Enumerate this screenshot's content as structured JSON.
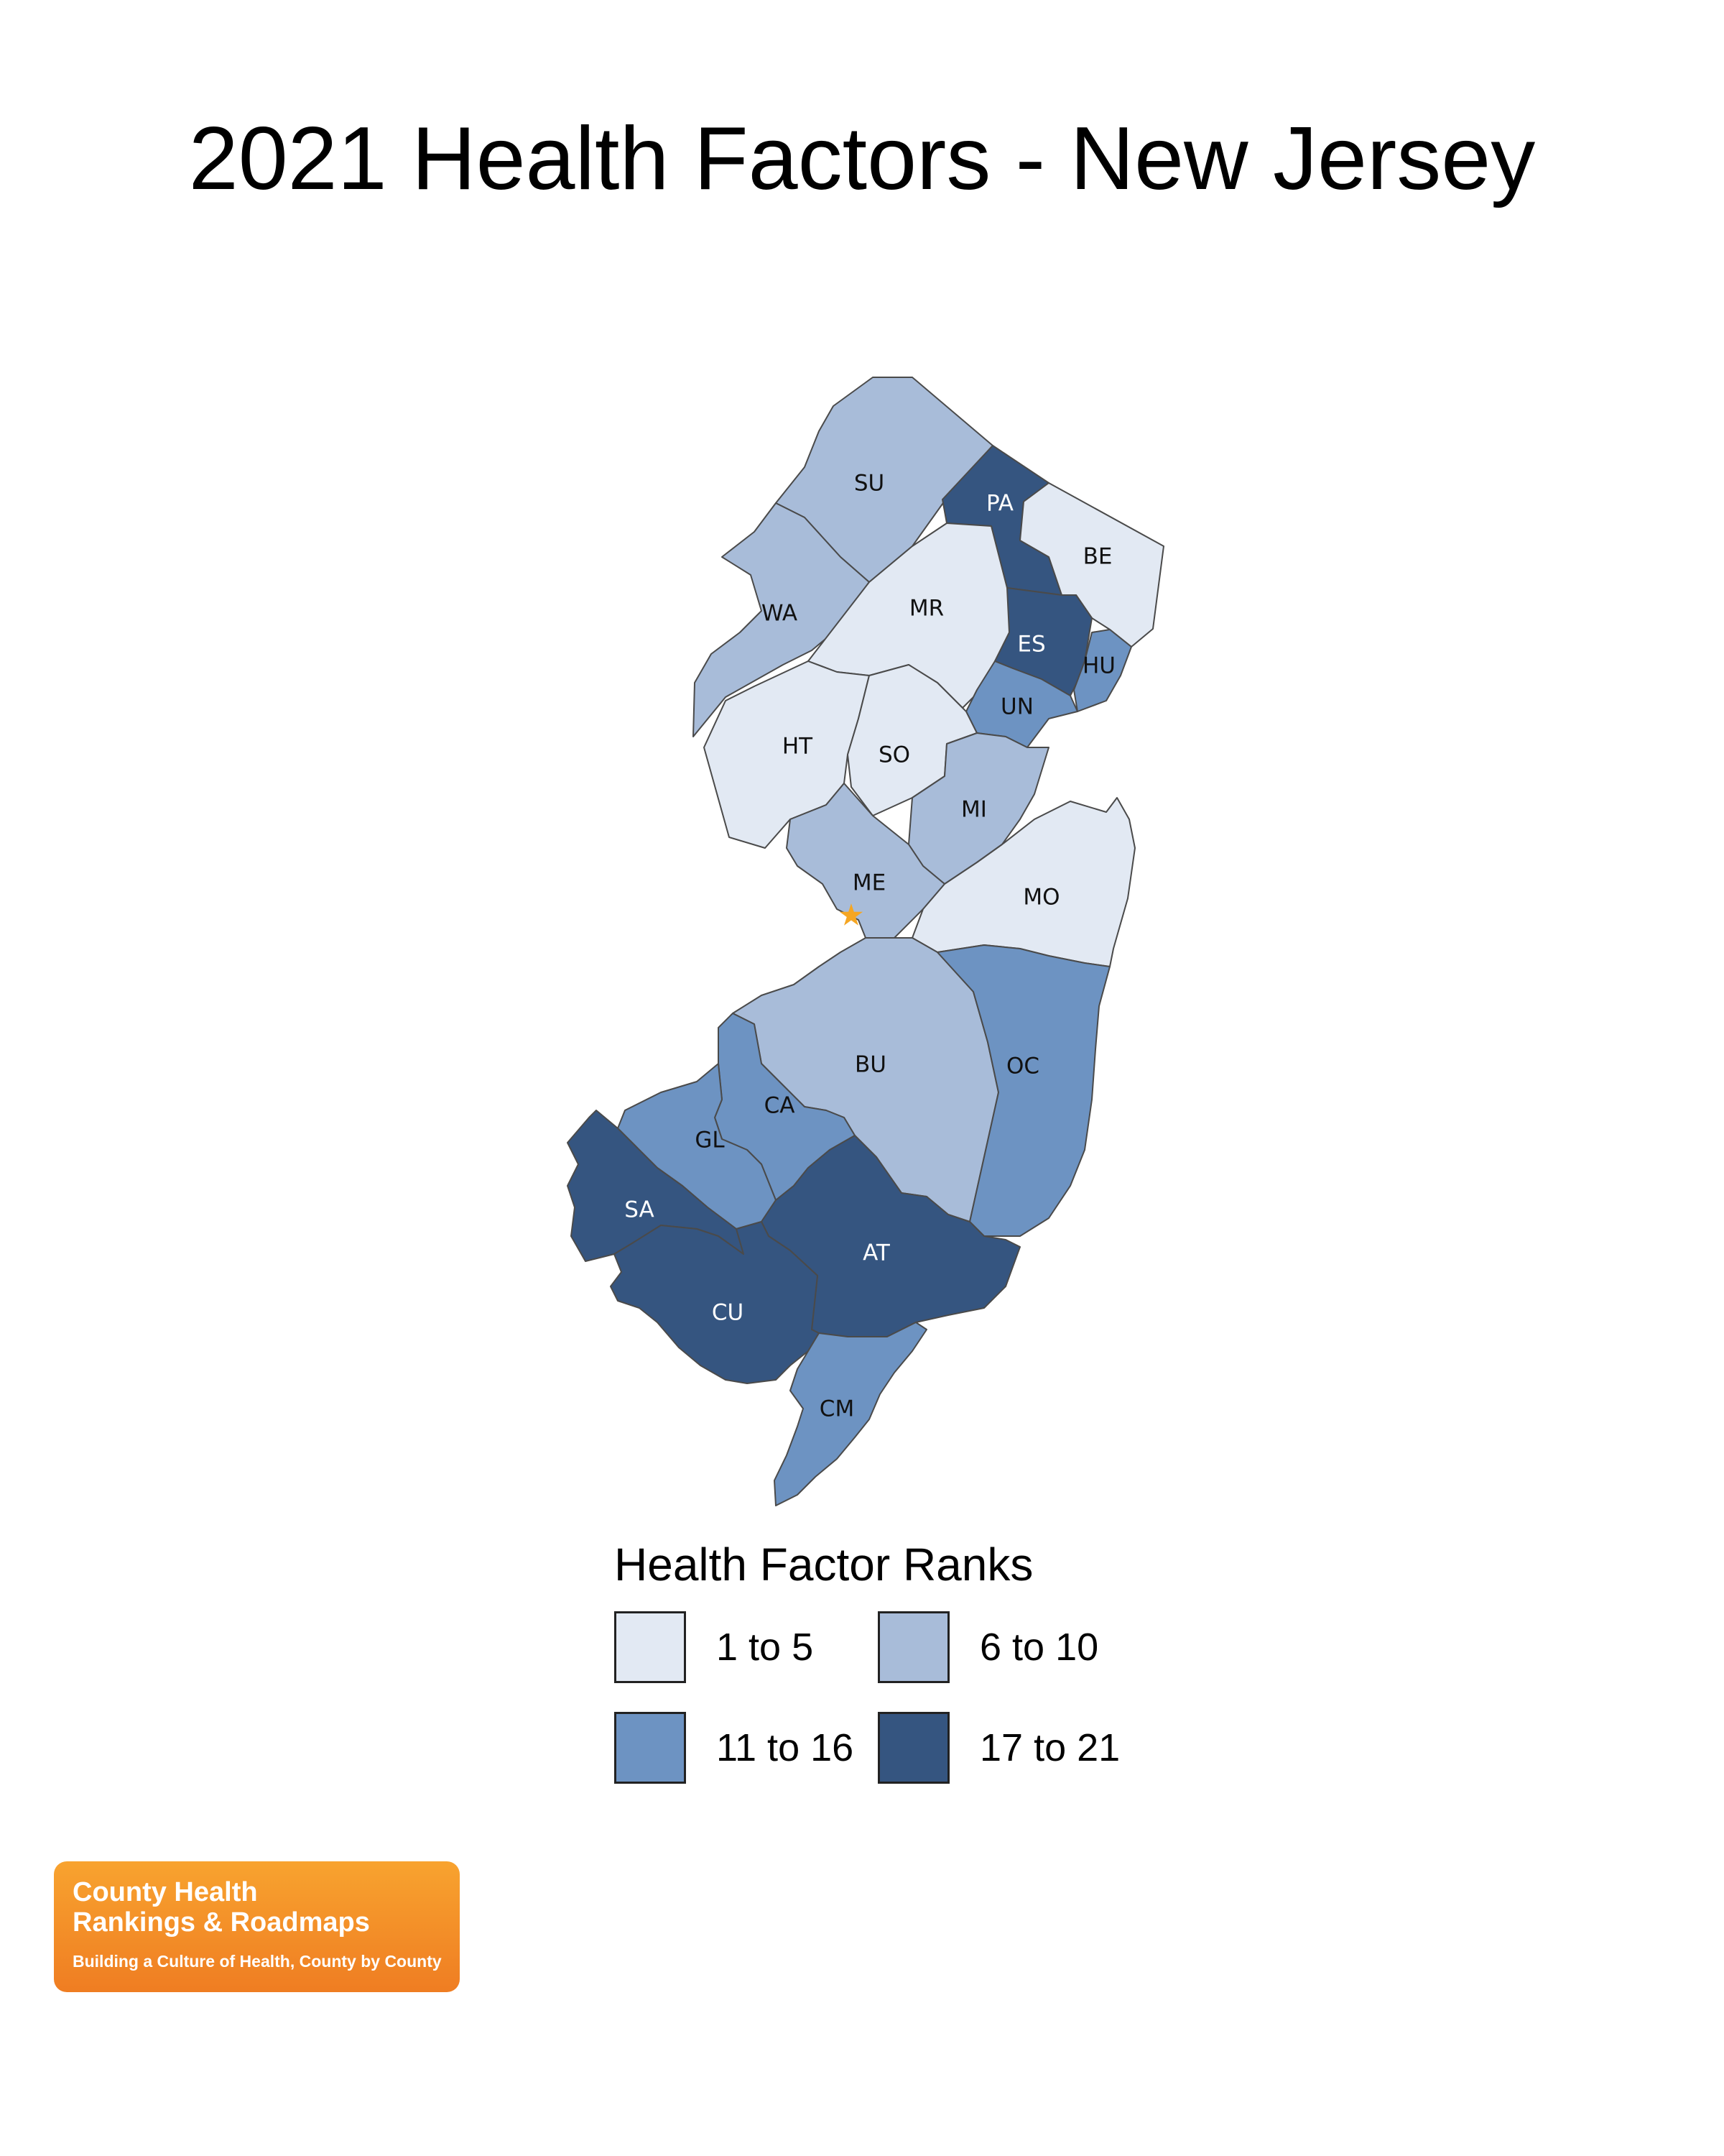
{
  "title": "2021 Health Factors - New Jersey",
  "legend": {
    "title": "Health Factor Ranks",
    "classes": [
      {
        "label": "1 to 5",
        "color": "#e2e9f3"
      },
      {
        "label": "6 to 10",
        "color": "#a8bcd9"
      },
      {
        "label": "11 to 16",
        "color": "#6d93c2"
      },
      {
        "label": "17 to 21",
        "color": "#355580"
      }
    ]
  },
  "capital_marker": {
    "symbol": "★",
    "color": "#f5a623"
  },
  "counties": [
    {
      "abbr": "SU",
      "class": "6 to 10"
    },
    {
      "abbr": "PA",
      "class": "17 to 21"
    },
    {
      "abbr": "BE",
      "class": "1 to 5"
    },
    {
      "abbr": "WA",
      "class": "6 to 10"
    },
    {
      "abbr": "MR",
      "class": "1 to 5"
    },
    {
      "abbr": "ES",
      "class": "17 to 21"
    },
    {
      "abbr": "HU",
      "class": "11 to 16"
    },
    {
      "abbr": "UN",
      "class": "11 to 16"
    },
    {
      "abbr": "HT",
      "class": "1 to 5"
    },
    {
      "abbr": "SO",
      "class": "1 to 5"
    },
    {
      "abbr": "MI",
      "class": "6 to 10"
    },
    {
      "abbr": "ME",
      "class": "6 to 10"
    },
    {
      "abbr": "MO",
      "class": "1 to 5"
    },
    {
      "abbr": "BU",
      "class": "6 to 10"
    },
    {
      "abbr": "OC",
      "class": "11 to 16"
    },
    {
      "abbr": "CA",
      "class": "11 to 16"
    },
    {
      "abbr": "GL",
      "class": "11 to 16"
    },
    {
      "abbr": "SA",
      "class": "17 to 21"
    },
    {
      "abbr": "AT",
      "class": "17 to 21"
    },
    {
      "abbr": "CU",
      "class": "17 to 21"
    },
    {
      "abbr": "CM",
      "class": "11 to 16"
    }
  ],
  "logo": {
    "line1": "County Health",
    "line2": "Rankings & Roadmaps",
    "tagline": "Building a Culture of Health, County by County"
  }
}
